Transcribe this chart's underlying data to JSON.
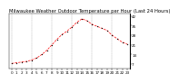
{
  "title": "Milwaukee Weather Outdoor Temperature per Hour (Last 24 Hours)",
  "hours": [
    0,
    1,
    2,
    3,
    4,
    5,
    6,
    7,
    8,
    9,
    10,
    11,
    12,
    13,
    14,
    15,
    16,
    17,
    18,
    19,
    20,
    21,
    22,
    23
  ],
  "temps": [
    7.5,
    8.0,
    8.5,
    9.0,
    10.0,
    11.5,
    14.0,
    17.0,
    21.0,
    25.0,
    28.5,
    31.0,
    34.0,
    37.5,
    40.0,
    38.5,
    36.0,
    34.5,
    33.0,
    31.5,
    28.0,
    25.5,
    23.0,
    21.5
  ],
  "line_color": "#ff0000",
  "marker_color": "#000000",
  "bg_color": "#ffffff",
  "plot_bg": "#ffffff",
  "grid_color": "#888888",
  "ylim": [
    4,
    44
  ],
  "yticks": [
    7,
    14,
    21,
    28,
    35,
    42
  ],
  "xlim": [
    -0.5,
    23.5
  ],
  "title_fontsize": 3.8,
  "tick_fontsize": 3.0,
  "ylabel_fontsize": 3.0,
  "grid_positions": [
    0,
    4,
    8,
    12,
    16,
    20
  ]
}
